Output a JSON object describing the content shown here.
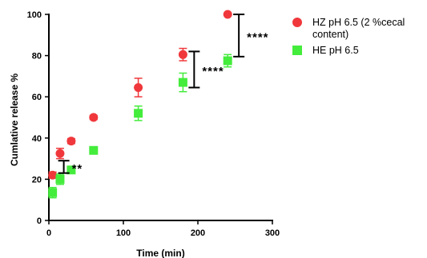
{
  "chart_data": {
    "type": "scatter",
    "xlabel": "Time (min)",
    "ylabel": "Cumlative release %",
    "xlim": [
      0,
      300
    ],
    "ylim": [
      0,
      100
    ],
    "x_ticks": [
      "0",
      "100",
      "200",
      "300"
    ],
    "y_ticks": [
      "0",
      "20",
      "40",
      "60",
      "80",
      "100"
    ],
    "x_tick_values": [
      0,
      100,
      200,
      300
    ],
    "y_tick_values": [
      0,
      20,
      40,
      60,
      80,
      100
    ],
    "grid": false,
    "legend_position": "top-right outside",
    "series": [
      {
        "name": "HZ pH 6.5 (2 %cecal content)",
        "marker": "circle",
        "color": "#f0383c",
        "x": [
          5,
          15,
          30,
          60,
          120,
          180,
          240
        ],
        "y": [
          22,
          32.5,
          38.5,
          50,
          64.5,
          80.5,
          100
        ],
        "error": [
          1.5,
          2.5,
          1.2,
          1.0,
          4.5,
          3.0,
          0
        ]
      },
      {
        "name": "HE pH 6.5",
        "marker": "square",
        "color": "#44ec3c",
        "x": [
          5,
          15,
          30,
          60,
          120,
          180,
          240
        ],
        "y": [
          13.5,
          20,
          24.5,
          34,
          52,
          67,
          77.5
        ],
        "error": [
          2.5,
          2.5,
          1.5,
          1.5,
          3.5,
          4.5,
          3.0
        ]
      }
    ],
    "significance": [
      {
        "x": 20,
        "y_low": 23,
        "y_high": 29,
        "label": "**"
      },
      {
        "x": 195,
        "y_low": 64.5,
        "y_high": 82,
        "label": "****"
      },
      {
        "x": 255,
        "y_low": 79.5,
        "y_high": 100,
        "label": "****"
      }
    ]
  }
}
